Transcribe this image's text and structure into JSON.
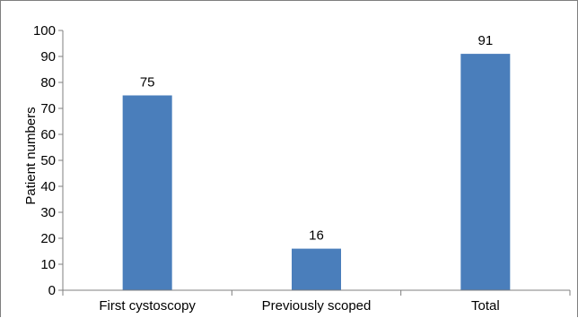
{
  "chart_data": {
    "type": "bar",
    "categories": [
      "First cystoscopy",
      "Previously scoped",
      "Total"
    ],
    "values": [
      75,
      16,
      91
    ],
    "data_labels": [
      "75",
      "16",
      "91"
    ],
    "title": "",
    "xlabel": "",
    "ylabel": "Patient numbers",
    "ylim": [
      0,
      100
    ],
    "yticks": [
      0,
      10,
      20,
      30,
      40,
      50,
      60,
      70,
      80,
      90,
      100
    ],
    "grid": false,
    "legend": "none",
    "bar_color": "#4a7ebb"
  }
}
